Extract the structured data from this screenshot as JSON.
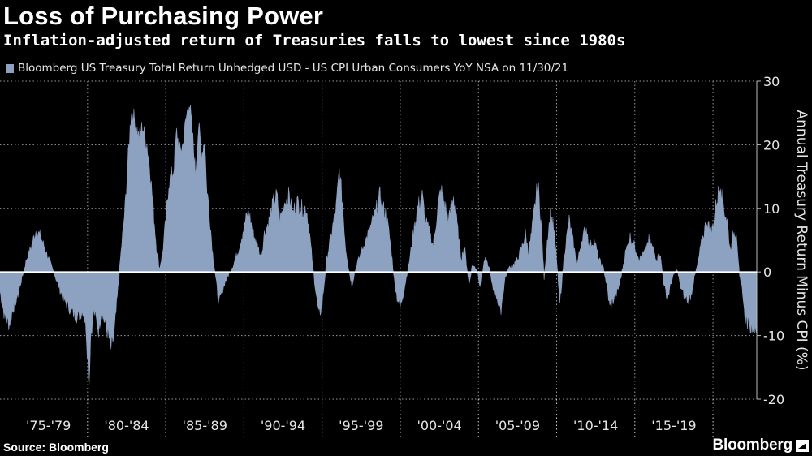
{
  "header": {
    "title": "Loss of Purchasing Power",
    "subtitle": "Inflation-adjusted return of Treasuries falls to lowest since 1980s"
  },
  "footer": {
    "source": "Source: Bloomberg",
    "brand": "Bloomberg"
  },
  "colors": {
    "series": "#8da1c1",
    "grid": "#9a9a9a",
    "background": "#000000"
  },
  "chart_data": {
    "type": "area",
    "title": "Loss of Purchasing Power",
    "subtitle": "Inflation-adjusted return of Treasuries falls to lowest since 1980s",
    "legend": "Bloomberg US Treasury Total Return Unhedged USD - US CPI Urban Consumers YoY NSA on 11/30/21",
    "ylabel": "Annual Treasury Return Minus CPI (%)",
    "xlabel": "",
    "ylim": [
      -20,
      30
    ],
    "yticks": [
      30,
      20,
      10,
      0,
      -10,
      -20
    ],
    "xlim": [
      1974.4,
      2022.8
    ],
    "categories": [
      "'75-'79",
      "'80-'84",
      "'85-'89",
      "'90-'94",
      "'95-'99",
      "'00-'04",
      "'05-'09",
      "'10-'14",
      "'15-'19"
    ],
    "grid": true,
    "legend_position": "top-left",
    "series": [
      {
        "name": "Bloomberg US Treasury Total Return Unhedged USD - US CPI Urban Consumers YoY NSA on 11/30/21",
        "points": [
          [
            1974.4,
            -3.0
          ],
          [
            1974.7,
            -7.0
          ],
          [
            1975.0,
            -8.2
          ],
          [
            1975.2,
            -6.0
          ],
          [
            1975.5,
            -4.0
          ],
          [
            1975.8,
            -1.0
          ],
          [
            1976.1,
            2.0
          ],
          [
            1976.4,
            4.0
          ],
          [
            1976.7,
            6.5
          ],
          [
            1977.0,
            5.5
          ],
          [
            1977.3,
            3.5
          ],
          [
            1977.6,
            1.5
          ],
          [
            1977.9,
            -0.5
          ],
          [
            1978.2,
            -2.5
          ],
          [
            1978.5,
            -4.5
          ],
          [
            1978.8,
            -5.5
          ],
          [
            1979.1,
            -6.5
          ],
          [
            1979.4,
            -7.0
          ],
          [
            1979.7,
            -6.0
          ],
          [
            1979.9,
            -8.5
          ],
          [
            1980.1,
            -17.5
          ],
          [
            1980.2,
            -10.0
          ],
          [
            1980.4,
            -6.0
          ],
          [
            1980.7,
            -9.0
          ],
          [
            1980.9,
            -6.0
          ],
          [
            1981.1,
            -8.0
          ],
          [
            1981.3,
            -9.5
          ],
          [
            1981.5,
            -12.0
          ],
          [
            1981.7,
            -10.0
          ],
          [
            1981.9,
            -4.0
          ],
          [
            1982.1,
            2.0
          ],
          [
            1982.4,
            10.0
          ],
          [
            1982.6,
            18.0
          ],
          [
            1982.8,
            25.5
          ],
          [
            1983.0,
            24.0
          ],
          [
            1983.3,
            21.0
          ],
          [
            1983.5,
            23.0
          ],
          [
            1983.8,
            20.0
          ],
          [
            1984.0,
            16.0
          ],
          [
            1984.2,
            10.0
          ],
          [
            1984.4,
            4.0
          ],
          [
            1984.6,
            0.5
          ],
          [
            1984.8,
            3.0
          ],
          [
            1985.0,
            8.0
          ],
          [
            1985.2,
            14.0
          ],
          [
            1985.5,
            16.0
          ],
          [
            1985.7,
            22.0
          ],
          [
            1985.9,
            19.0
          ],
          [
            1986.1,
            20.0
          ],
          [
            1986.3,
            24.0
          ],
          [
            1986.5,
            27.0
          ],
          [
            1986.7,
            22.0
          ],
          [
            1986.9,
            15.5
          ],
          [
            1987.1,
            23.0
          ],
          [
            1987.3,
            18.5
          ],
          [
            1987.5,
            21.0
          ],
          [
            1987.6,
            14.0
          ],
          [
            1987.8,
            9.0
          ],
          [
            1988.0,
            3.0
          ],
          [
            1988.2,
            -1.0
          ],
          [
            1988.4,
            -5.0
          ],
          [
            1988.6,
            -3.0
          ],
          [
            1988.8,
            -1.5
          ],
          [
            1989.0,
            -0.5
          ],
          [
            1989.3,
            1.0
          ],
          [
            1989.6,
            3.0
          ],
          [
            1989.9,
            6.0
          ],
          [
            1990.1,
            8.0
          ],
          [
            1990.3,
            9.5
          ],
          [
            1990.6,
            6.0
          ],
          [
            1990.9,
            4.0
          ],
          [
            1991.1,
            2.0
          ],
          [
            1991.3,
            6.0
          ],
          [
            1991.6,
            8.0
          ],
          [
            1991.9,
            11.0
          ],
          [
            1992.1,
            12.0
          ],
          [
            1992.3,
            8.0
          ],
          [
            1992.6,
            11.0
          ],
          [
            1992.9,
            12.0
          ],
          [
            1993.1,
            9.0
          ],
          [
            1993.4,
            11.0
          ],
          [
            1993.7,
            10.0
          ],
          [
            1994.0,
            10.0
          ],
          [
            1994.2,
            6.0
          ],
          [
            1994.4,
            1.0
          ],
          [
            1994.6,
            -3.0
          ],
          [
            1994.8,
            -7.0
          ],
          [
            1995.0,
            -5.0
          ],
          [
            1995.3,
            2.0
          ],
          [
            1995.6,
            6.0
          ],
          [
            1995.9,
            10.0
          ],
          [
            1996.1,
            16.0
          ],
          [
            1996.3,
            11.0
          ],
          [
            1996.5,
            4.0
          ],
          [
            1996.7,
            0.5
          ],
          [
            1996.9,
            -2.0
          ],
          [
            1997.2,
            1.0
          ],
          [
            1997.5,
            3.0
          ],
          [
            1997.8,
            5.0
          ],
          [
            1998.1,
            7.0
          ],
          [
            1998.4,
            9.0
          ],
          [
            1998.7,
            12.0
          ],
          [
            1998.9,
            10.0
          ],
          [
            1999.1,
            9.0
          ],
          [
            1999.4,
            4.0
          ],
          [
            1999.6,
            -1.0
          ],
          [
            1999.8,
            -4.0
          ],
          [
            2000.0,
            -5.5
          ],
          [
            2000.3,
            -2.0
          ],
          [
            2000.6,
            2.0
          ],
          [
            2000.9,
            7.0
          ],
          [
            2001.1,
            10.0
          ],
          [
            2001.4,
            12.0
          ],
          [
            2001.6,
            8.0
          ],
          [
            2001.9,
            6.0
          ],
          [
            2002.1,
            4.0
          ],
          [
            2002.4,
            10.0
          ],
          [
            2002.6,
            13.0
          ],
          [
            2002.9,
            10.0
          ],
          [
            2003.1,
            8.0
          ],
          [
            2003.4,
            12.0
          ],
          [
            2003.6,
            8.0
          ],
          [
            2003.9,
            2.0
          ],
          [
            2004.1,
            4.0
          ],
          [
            2004.4,
            -2.0
          ],
          [
            2004.6,
            1.0
          ],
          [
            2004.9,
            0.5
          ],
          [
            2005.1,
            -2.0
          ],
          [
            2005.4,
            2.0
          ],
          [
            2005.7,
            0.5
          ],
          [
            2005.9,
            -2.5
          ],
          [
            2006.2,
            -4.0
          ],
          [
            2006.4,
            -6.5
          ],
          [
            2006.7,
            -1.0
          ],
          [
            2006.9,
            0.5
          ],
          [
            2007.2,
            1.0
          ],
          [
            2007.5,
            2.0
          ],
          [
            2007.8,
            4.0
          ],
          [
            2008.0,
            6.0
          ],
          [
            2008.2,
            3.0
          ],
          [
            2008.4,
            6.0
          ],
          [
            2008.6,
            10.0
          ],
          [
            2008.8,
            14.0
          ],
          [
            2009.0,
            8.0
          ],
          [
            2009.2,
            -1.0
          ],
          [
            2009.4,
            5.0
          ],
          [
            2009.6,
            9.0
          ],
          [
            2009.8,
            7.0
          ],
          [
            2010.0,
            2.0
          ],
          [
            2010.2,
            -5.0
          ],
          [
            2010.5,
            3.0
          ],
          [
            2010.8,
            8.0
          ],
          [
            2011.1,
            4.0
          ],
          [
            2011.3,
            1.0
          ],
          [
            2011.6,
            5.0
          ],
          [
            2011.9,
            7.0
          ],
          [
            2012.1,
            4.0
          ],
          [
            2012.4,
            5.0
          ],
          [
            2012.7,
            2.0
          ],
          [
            2013.0,
            0.5
          ],
          [
            2013.2,
            -2.0
          ],
          [
            2013.4,
            -5.5
          ],
          [
            2013.7,
            -4.0
          ],
          [
            2013.9,
            -3.0
          ],
          [
            2014.1,
            -1.0
          ],
          [
            2014.4,
            3.0
          ],
          [
            2014.7,
            5.5
          ],
          [
            2015.0,
            4.0
          ],
          [
            2015.3,
            2.0
          ],
          [
            2015.6,
            3.0
          ],
          [
            2015.9,
            5.0
          ],
          [
            2016.1,
            4.0
          ],
          [
            2016.4,
            2.0
          ],
          [
            2016.6,
            3.0
          ],
          [
            2016.9,
            -2.5
          ],
          [
            2017.1,
            -4.0
          ],
          [
            2017.4,
            -1.0
          ],
          [
            2017.7,
            0.5
          ],
          [
            2017.9,
            -2.0
          ],
          [
            2018.1,
            -3.5
          ],
          [
            2018.4,
            -4.5
          ],
          [
            2018.6,
            -3.5
          ],
          [
            2018.8,
            -1.0
          ],
          [
            2019.0,
            1.0
          ],
          [
            2019.3,
            5.0
          ],
          [
            2019.6,
            8.0
          ],
          [
            2019.9,
            6.0
          ],
          [
            2020.1,
            9.0
          ],
          [
            2020.3,
            12.0
          ],
          [
            2020.5,
            14.0
          ],
          [
            2020.7,
            10.0
          ],
          [
            2020.9,
            8.0
          ],
          [
            2021.1,
            3.5
          ],
          [
            2021.3,
            6.0
          ],
          [
            2021.5,
            6.5
          ],
          [
            2021.7,
            -1.0
          ],
          [
            2021.9,
            -3.0
          ],
          [
            2022.0,
            -6.5
          ],
          [
            2022.2,
            -8.0
          ],
          [
            2022.4,
            -8.7
          ],
          [
            2022.6,
            -8.0
          ],
          [
            2022.8,
            -8.7
          ]
        ]
      }
    ]
  }
}
